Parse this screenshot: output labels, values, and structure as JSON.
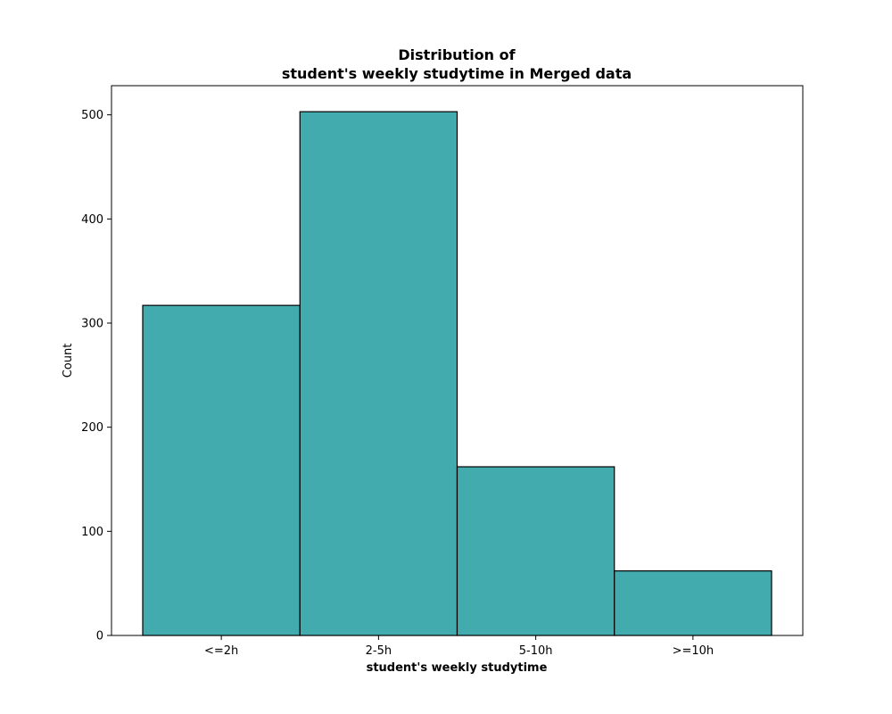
{
  "chart_data": {
    "type": "bar",
    "title_lines": [
      "Distribution of",
      "student's weekly studytime in Merged data"
    ],
    "xlabel": "student's weekly studytime",
    "ylabel": "Count",
    "categories": [
      "<=2h",
      "2-5h",
      "5-10h",
      ">=10h"
    ],
    "values": [
      317,
      503,
      162,
      62
    ],
    "ylim": [
      0,
      528
    ],
    "yticks": [
      0,
      100,
      200,
      300,
      400,
      500
    ],
    "bar_color": "#41abae",
    "edge_color": "#000000",
    "grid": false
  }
}
